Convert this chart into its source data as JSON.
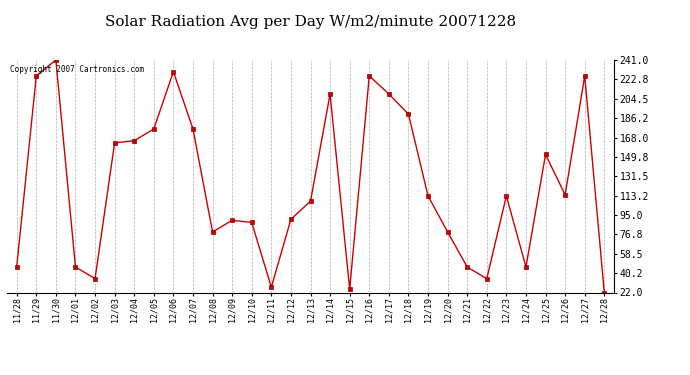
{
  "title": "Solar Radiation Avg per Day W/m2/minute 20071228",
  "copyright": "Copyright 2007 Cartronics.com",
  "labels": [
    "11/28",
    "11/29",
    "11/30",
    "12/01",
    "12/02",
    "12/03",
    "12/04",
    "12/05",
    "12/06",
    "12/07",
    "12/08",
    "12/09",
    "12/10",
    "12/11",
    "12/12",
    "12/13",
    "12/14",
    "12/15",
    "12/16",
    "12/17",
    "12/18",
    "12/19",
    "12/20",
    "12/21",
    "12/22",
    "12/23",
    "12/24",
    "12/25",
    "12/26",
    "12/27",
    "12/28"
  ],
  "values": [
    46,
    226,
    241,
    46,
    35,
    163,
    165,
    176,
    230,
    176,
    79,
    90,
    88,
    27,
    91,
    108,
    209,
    25,
    226,
    209,
    190,
    113,
    79,
    46,
    35,
    113,
    46,
    152,
    114,
    226,
    22
  ],
  "y_ticks": [
    22.0,
    40.2,
    58.5,
    76.8,
    95.0,
    113.2,
    131.5,
    149.8,
    168.0,
    186.2,
    204.5,
    222.8,
    241.0
  ],
  "line_color": "#cc0000",
  "marker_color": "#cc0000",
  "bg_color": "#ffffff",
  "plot_bg_color": "#ffffff",
  "grid_color": "#b0b0b0",
  "title_fontsize": 11,
  "ylim_lo": 22.0,
  "ylim_hi": 241.0
}
